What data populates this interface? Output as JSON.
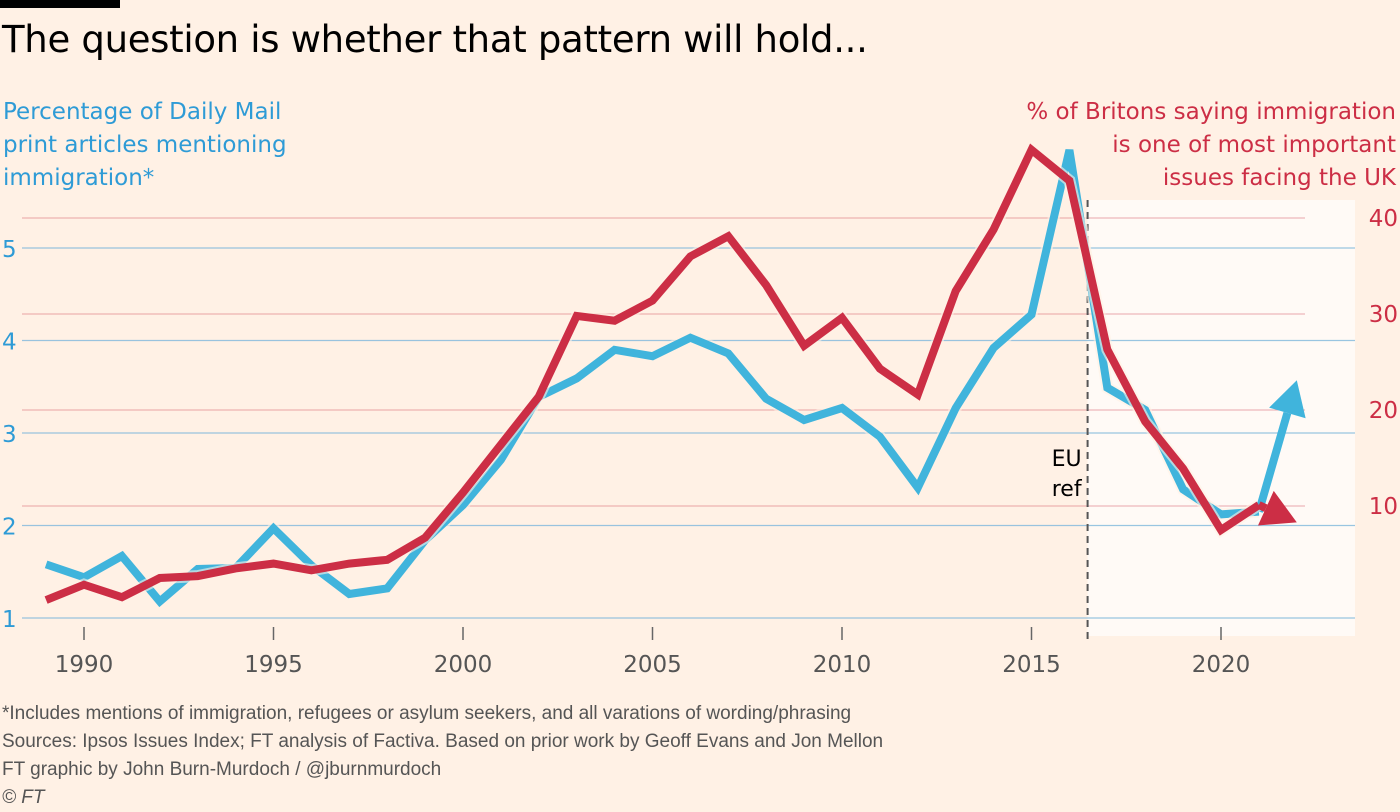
{
  "title": "The question is whether that pattern will hold...",
  "left_axis_label": [
    "Percentage of Daily Mail",
    "print articles mentioning",
    "immigration*"
  ],
  "right_axis_label": [
    "% of Britons saying immigration",
    "is one of most important",
    "issues facing the UK"
  ],
  "footer": {
    "note": "*Includes mentions of immigration, refugees or asylum seekers, and all varations of wording/phrasing",
    "sources": "Sources: Ipsos Issues Index; FT analysis of Factiva. Based on prior work by Geoff Evans and Jon Mellon",
    "credit": "FT graphic by John Burn-Murdoch / @jburnmurdoch",
    "copyright": "© FT"
  },
  "colors": {
    "background": "#fff1e5",
    "highlight_panel": "#fffaf6",
    "daily_mail": "#40b4dc",
    "ipsos": "#cc2e45",
    "left_axis_text": "#2e9bd6",
    "grid_left": "#7fb8dc",
    "grid_right": "#d9606f",
    "annotation": "#555555"
  },
  "chart_data": {
    "type": "line",
    "title": "The question is whether that pattern will hold...",
    "xlabel": "",
    "x": [
      1989,
      1990,
      1991,
      1992,
      1993,
      1994,
      1995,
      1996,
      1997,
      1998,
      1999,
      2000,
      2001,
      2002,
      2003,
      2004,
      2005,
      2006,
      2007,
      2008,
      2009,
      2010,
      2011,
      2012,
      2013,
      2014,
      2015,
      2016,
      2017,
      2018,
      2019,
      2020,
      2021
    ],
    "xlim": [
      1989,
      2023.5
    ],
    "xticks": [
      1990,
      1995,
      2000,
      2005,
      2010,
      2015,
      2020
    ],
    "grid": true,
    "series": [
      {
        "name": "Percentage of Daily Mail print articles mentioning immigration*",
        "axis": "left",
        "values": [
          1.58,
          1.44,
          1.67,
          1.18,
          1.53,
          1.54,
          1.97,
          1.57,
          1.26,
          1.32,
          1.84,
          2.22,
          2.71,
          3.39,
          3.59,
          3.9,
          3.83,
          4.03,
          3.86,
          3.37,
          3.14,
          3.27,
          2.96,
          2.41,
          3.27,
          3.92,
          4.28,
          6.06,
          3.49,
          3.25,
          2.39,
          2.12,
          2.15
        ],
        "projection": {
          "x": 2022,
          "value": 3.57,
          "direction": "up"
        }
      },
      {
        "name": "% of Britons saying immigration is one of most important issues facing the UK",
        "axis": "right",
        "values": [
          0.2,
          1.8,
          0.5,
          2.5,
          2.7,
          3.5,
          4.0,
          3.3,
          4.0,
          4.4,
          6.7,
          11.4,
          16.4,
          21.4,
          29.8,
          29.3,
          31.4,
          36.0,
          38.1,
          33.0,
          26.7,
          29.6,
          24.3,
          21.6,
          32.4,
          38.8,
          47.1,
          43.9,
          26.3,
          18.8,
          13.9,
          7.5,
          10.1
        ],
        "projection": {
          "x": 2022,
          "value": 8.3,
          "direction": "down"
        }
      }
    ],
    "left_axis": {
      "ylabel": "Percentage of Daily Mail print articles mentioning immigration*",
      "ylim": [
        1,
        5.5
      ],
      "ticks": [
        1,
        2,
        3,
        4,
        5
      ]
    },
    "right_axis": {
      "ylabel": "% of Britons saying immigration is one of most important issues facing the UK",
      "ylim": [
        0,
        40
      ],
      "ticks": [
        10,
        20,
        30,
        40
      ]
    },
    "annotations": [
      {
        "text": [
          "EU",
          "ref"
        ],
        "x": 2016.48,
        "style": "dashed-vertical-line"
      },
      {
        "text": "highlighted period",
        "x_from": 2016.48,
        "x_to": 2023.5,
        "style": "light-panel"
      }
    ]
  }
}
